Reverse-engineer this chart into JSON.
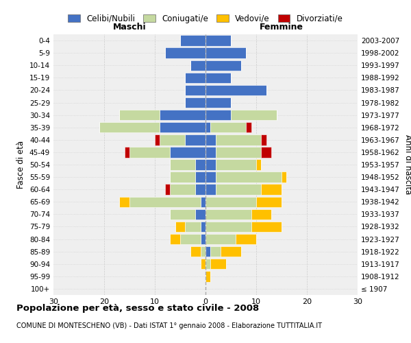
{
  "age_groups": [
    "100+",
    "95-99",
    "90-94",
    "85-89",
    "80-84",
    "75-79",
    "70-74",
    "65-69",
    "60-64",
    "55-59",
    "50-54",
    "45-49",
    "40-44",
    "35-39",
    "30-34",
    "25-29",
    "20-24",
    "15-19",
    "10-14",
    "5-9",
    "0-4"
  ],
  "birth_years": [
    "≤ 1907",
    "1908-1912",
    "1913-1917",
    "1918-1922",
    "1923-1927",
    "1928-1932",
    "1933-1937",
    "1938-1942",
    "1943-1947",
    "1948-1952",
    "1953-1957",
    "1958-1962",
    "1963-1967",
    "1968-1972",
    "1973-1977",
    "1978-1982",
    "1983-1987",
    "1988-1992",
    "1993-1997",
    "1998-2002",
    "2003-2007"
  ],
  "colors": {
    "celibi": "#4472C4",
    "coniugati": "#C5D9A0",
    "vedovi": "#FFC000",
    "divorziati": "#C00000"
  },
  "maschi": {
    "celibi": [
      0,
      0,
      0,
      0,
      1,
      1,
      2,
      1,
      2,
      2,
      2,
      7,
      4,
      9,
      9,
      4,
      4,
      4,
      3,
      8,
      5
    ],
    "coniugati": [
      0,
      0,
      0,
      1,
      4,
      3,
      5,
      14,
      5,
      5,
      5,
      8,
      5,
      12,
      8,
      0,
      0,
      0,
      0,
      0,
      0
    ],
    "vedovi": [
      0,
      0,
      1,
      2,
      2,
      2,
      0,
      2,
      0,
      0,
      0,
      0,
      0,
      0,
      0,
      0,
      0,
      0,
      0,
      0,
      0
    ],
    "divorziati": [
      0,
      0,
      0,
      0,
      0,
      0,
      0,
      0,
      1,
      0,
      0,
      1,
      1,
      0,
      0,
      0,
      0,
      0,
      0,
      0,
      0
    ]
  },
  "femmine": {
    "celibi": [
      0,
      0,
      0,
      1,
      0,
      0,
      0,
      0,
      2,
      2,
      2,
      2,
      2,
      1,
      5,
      5,
      12,
      5,
      7,
      8,
      5
    ],
    "coniugati": [
      0,
      0,
      1,
      2,
      6,
      9,
      9,
      10,
      9,
      13,
      8,
      9,
      9,
      7,
      9,
      0,
      0,
      0,
      0,
      0,
      0
    ],
    "vedovi": [
      0,
      1,
      3,
      4,
      4,
      6,
      4,
      5,
      4,
      1,
      1,
      0,
      0,
      0,
      0,
      0,
      0,
      0,
      0,
      0,
      0
    ],
    "divorziati": [
      0,
      0,
      0,
      0,
      0,
      0,
      0,
      0,
      0,
      0,
      0,
      2,
      1,
      1,
      0,
      0,
      0,
      0,
      0,
      0,
      0
    ]
  },
  "title": "Popolazione per età, sesso e stato civile - 2008",
  "subtitle": "COMUNE DI MONTESCHENO (VB) - Dati ISTAT 1° gennaio 2008 - Elaborazione TUTTITALIA.IT",
  "xlabel_left": "Maschi",
  "xlabel_right": "Femmine",
  "ylabel_left": "Fasce di età",
  "ylabel_right": "Anni di nascita",
  "xlim": 30,
  "legend_labels": [
    "Celibi/Nubili",
    "Coniugati/e",
    "Vedovi/e",
    "Divorziati/e"
  ],
  "bg_color": "#ffffff",
  "grid_color": "#cccccc",
  "plot_bg": "#efefef"
}
